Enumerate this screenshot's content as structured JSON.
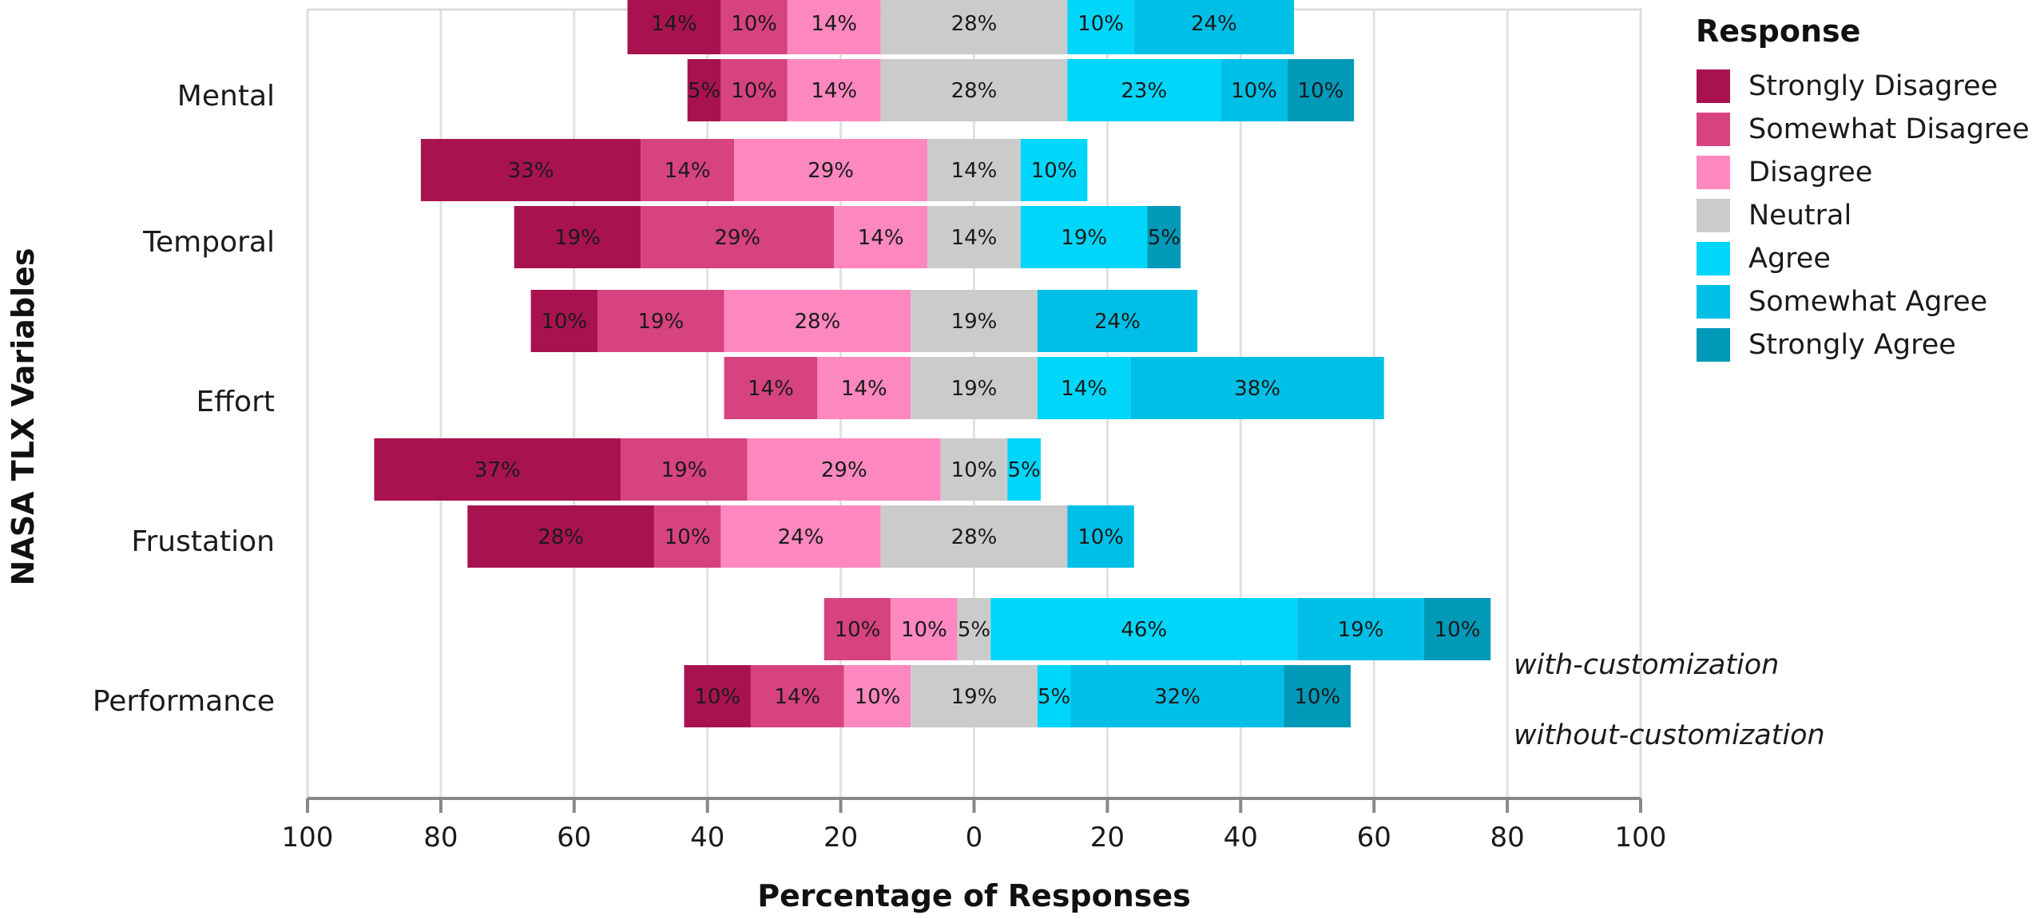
{
  "chart_data": {
    "type": "bar",
    "orientation": "horizontal",
    "stacking": "diverging",
    "xlabel": "Percentage of Responses",
    "ylabel": "NASA TLX Variables",
    "xlim": [
      -100,
      100
    ],
    "x_ticks": [
      {
        "value": -100,
        "label": "100"
      },
      {
        "value": -80,
        "label": "80"
      },
      {
        "value": -60,
        "label": "60"
      },
      {
        "value": -40,
        "label": "40"
      },
      {
        "value": -20,
        "label": "20"
      },
      {
        "value": 0,
        "label": "0"
      },
      {
        "value": 20,
        "label": "20"
      },
      {
        "value": 40,
        "label": "40"
      },
      {
        "value": 60,
        "label": "60"
      },
      {
        "value": 80,
        "label": "80"
      },
      {
        "value": 100,
        "label": "100"
      }
    ],
    "grid": true,
    "legend": {
      "title": "Response",
      "placement": "right",
      "entries": [
        {
          "name": "Strongly Disagree",
          "color": "#a8134f"
        },
        {
          "name": "Somewhat Disagree",
          "color": "#d6437f"
        },
        {
          "name": "Disagree",
          "color": "#fd88bf"
        },
        {
          "name": "Neutral",
          "color": "#cbcbcb"
        },
        {
          "name": "Agree",
          "color": "#00d6fa"
        },
        {
          "name": "Somewhat Agree",
          "color": "#00bfe6"
        },
        {
          "name": "Strongly Agree",
          "color": "#0099b8"
        }
      ]
    },
    "groups": [
      "with-customization",
      "without-customization"
    ],
    "categories": [
      "Mental",
      "Temporal",
      "Effort",
      "Frustation",
      "Performance"
    ],
    "bars": [
      {
        "category": "Mental",
        "group": "with-customization",
        "values": [
          14,
          10,
          14,
          28,
          10,
          24,
          0
        ],
        "labels": [
          "14%",
          "10%",
          "14%",
          "28%",
          "10%",
          "24%",
          ""
        ]
      },
      {
        "category": "Mental",
        "group": "without-customization",
        "values": [
          5,
          10,
          14,
          28,
          23,
          10,
          10
        ],
        "labels": [
          "5%",
          "10%",
          "14%",
          "28%",
          "23%",
          "10%",
          "10%"
        ]
      },
      {
        "category": "Temporal",
        "group": "with-customization",
        "values": [
          33,
          14,
          29,
          14,
          10,
          0,
          0
        ],
        "labels": [
          "33%",
          "14%",
          "29%",
          "14%",
          "10%",
          "",
          ""
        ]
      },
      {
        "category": "Temporal",
        "group": "without-customization",
        "values": [
          19,
          29,
          14,
          14,
          19,
          0,
          5
        ],
        "labels": [
          "19%",
          "29%",
          "14%",
          "14%",
          "19%",
          "",
          "5%"
        ]
      },
      {
        "category": "Effort",
        "group": "with-customization",
        "values": [
          10,
          19,
          28,
          19,
          0,
          24,
          0
        ],
        "labels": [
          "10%",
          "19%",
          "28%",
          "19%",
          "",
          "24%",
          ""
        ]
      },
      {
        "category": "Effort",
        "group": "without-customization",
        "values": [
          0,
          14,
          14,
          19,
          14,
          38,
          0
        ],
        "labels": [
          "",
          "14%",
          "14%",
          "19%",
          "14%",
          "38%",
          ""
        ]
      },
      {
        "category": "Frustation",
        "group": "with-customization",
        "values": [
          37,
          19,
          29,
          10,
          5,
          0,
          0
        ],
        "labels": [
          "37%",
          "19%",
          "29%",
          "10%",
          "5%",
          "",
          ""
        ]
      },
      {
        "category": "Frustation",
        "group": "without-customization",
        "values": [
          28,
          10,
          24,
          28,
          0,
          10,
          0
        ],
        "labels": [
          "28%",
          "10%",
          "24%",
          "28%",
          "",
          "10%",
          ""
        ]
      },
      {
        "category": "Performance",
        "group": "with-customization",
        "values": [
          0,
          10,
          10,
          5,
          46,
          19,
          10
        ],
        "labels": [
          "",
          "10%",
          "10%",
          "5%",
          "46%",
          "19%",
          "10%"
        ]
      },
      {
        "category": "Performance",
        "group": "without-customization",
        "values": [
          10,
          14,
          10,
          19,
          5,
          32,
          10
        ],
        "labels": [
          "10%",
          "14%",
          "10%",
          "19%",
          "5%",
          "32%",
          "10%"
        ]
      }
    ]
  }
}
